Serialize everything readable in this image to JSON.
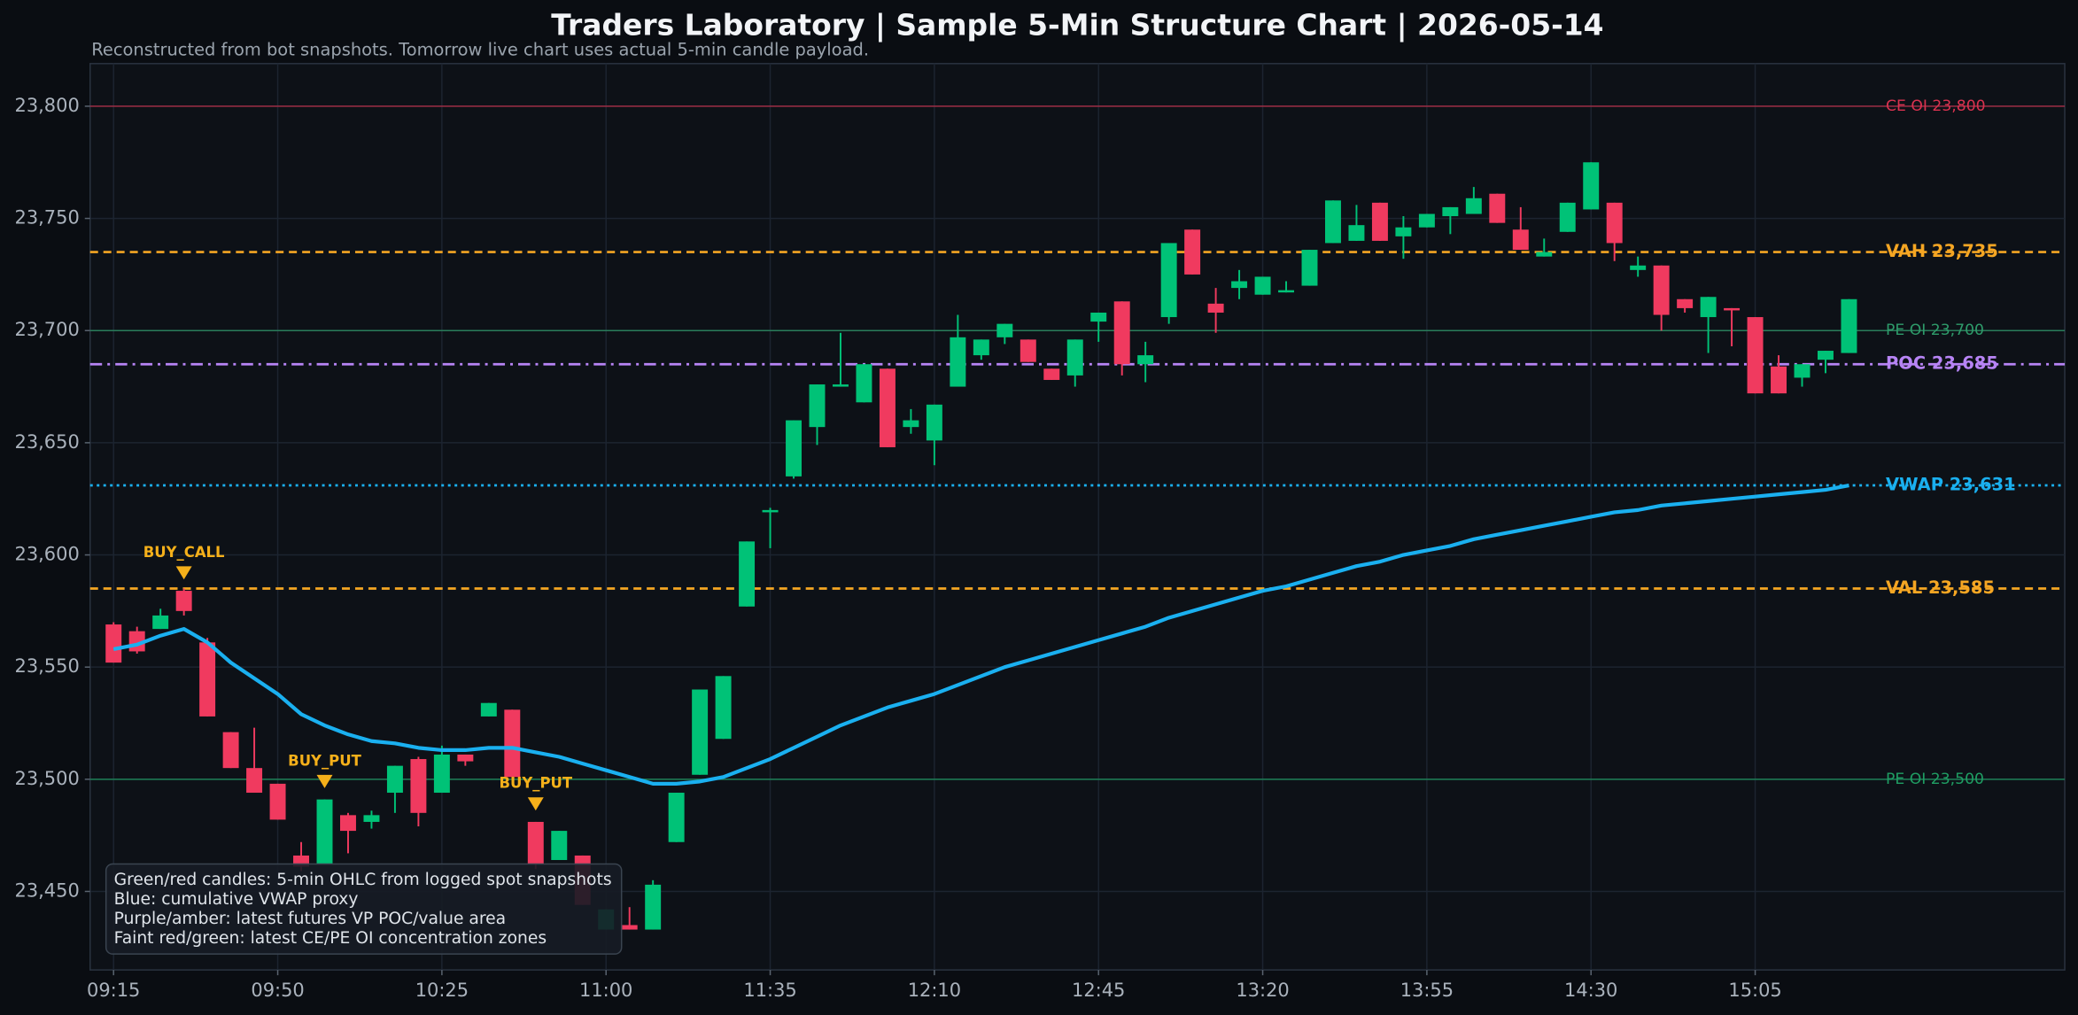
{
  "chart_data": {
    "type": "candlestick",
    "title": "Traders Laboratory | Sample 5-Min Structure Chart | 2026-05-14",
    "subtitle": "Reconstructed from bot snapshots. Tomorrow live chart uses actual 5-min candle payload.",
    "x": [
      0,
      1,
      2,
      3,
      4,
      5,
      6,
      7,
      8,
      9,
      10,
      11,
      12,
      13,
      14,
      15,
      16,
      17,
      18,
      19,
      20,
      21,
      22,
      23,
      24,
      25,
      26,
      27,
      28,
      29,
      30,
      31,
      32,
      33,
      34,
      35,
      36,
      37,
      38,
      39,
      40,
      41,
      42,
      43,
      44,
      45,
      46,
      47,
      48,
      49,
      50,
      51,
      52,
      53,
      54,
      55,
      56,
      57,
      58,
      59,
      60,
      61,
      62,
      63,
      64,
      65,
      66,
      67,
      68,
      69,
      70,
      71,
      72,
      73,
      74
    ],
    "open": [
      23569,
      23566,
      23567,
      23584,
      23561,
      23521,
      23505,
      23498,
      23466,
      23462,
      23484,
      23481,
      23494,
      23509,
      23494,
      23511,
      23528,
      23531,
      23481,
      23464,
      23466,
      23433,
      23435,
      23433,
      23472,
      23502,
      23518,
      23577,
      23619,
      23635,
      23657,
      23675,
      23668,
      23683,
      23657,
      23651,
      23675,
      23689,
      23697,
      23696,
      23683,
      23680,
      23704,
      23713,
      23685,
      23706,
      23745,
      23712,
      23719,
      23716,
      23717,
      23720,
      23739,
      23740,
      23757,
      23742,
      23746,
      23751,
      23752,
      23761,
      23745,
      23733,
      23744,
      23754,
      23757,
      23727,
      23729,
      23714,
      23706,
      23710,
      23706,
      23684,
      23679,
      23687,
      23690
    ],
    "high": [
      23570,
      23568,
      23576,
      23585,
      23563,
      23521,
      23523,
      23498,
      23472,
      23491,
      23485,
      23486,
      23506,
      23510,
      23515,
      23511,
      23534,
      23531,
      23481,
      23477,
      23466,
      23442,
      23443,
      23455,
      23494,
      23540,
      23546,
      23606,
      23621,
      23660,
      23676,
      23699,
      23685,
      23683,
      23665,
      23667,
      23707,
      23696,
      23703,
      23696,
      23683,
      23696,
      23708,
      23713,
      23695,
      23739,
      23745,
      23719,
      23727,
      23724,
      23722,
      23736,
      23758,
      23756,
      23757,
      23751,
      23752,
      23755,
      23764,
      23761,
      23755,
      23741,
      23757,
      23775,
      23757,
      23733,
      23729,
      23714,
      23715,
      23710,
      23706,
      23689,
      23685,
      23691,
      23714
    ],
    "low": [
      23552,
      23556,
      23567,
      23573,
      23528,
      23505,
      23494,
      23482,
      23459,
      23462,
      23467,
      23478,
      23485,
      23479,
      23494,
      23506,
      23528,
      23501,
      23460,
      23464,
      23444,
      23433,
      23433,
      23433,
      23472,
      23502,
      23518,
      23577,
      23603,
      23634,
      23649,
      23675,
      23668,
      23648,
      23654,
      23640,
      23675,
      23687,
      23694,
      23686,
      23678,
      23675,
      23695,
      23680,
      23677,
      23703,
      23725,
      23699,
      23714,
      23716,
      23717,
      23720,
      23739,
      23740,
      23740,
      23732,
      23746,
      23743,
      23752,
      23748,
      23736,
      23733,
      23744,
      23754,
      23731,
      23724,
      23700,
      23708,
      23690,
      23693,
      23672,
      23672,
      23675,
      23681,
      23690
    ],
    "close": [
      23552,
      23557,
      23573,
      23575,
      23528,
      23505,
      23494,
      23482,
      23461,
      23491,
      23477,
      23484,
      23506,
      23485,
      23511,
      23508,
      23534,
      23501,
      23462,
      23477,
      23444,
      23442,
      23433,
      23453,
      23494,
      23540,
      23546,
      23606,
      23620,
      23660,
      23676,
      23676,
      23685,
      23648,
      23660,
      23667,
      23697,
      23696,
      23703,
      23686,
      23678,
      23696,
      23708,
      23685,
      23689,
      23739,
      23725,
      23708,
      23722,
      23724,
      23718,
      23736,
      23758,
      23747,
      23740,
      23746,
      23752,
      23755,
      23759,
      23748,
      23736,
      23735,
      23757,
      23775,
      23739,
      23729,
      23707,
      23710,
      23715,
      23709,
      23672,
      23672,
      23685,
      23691,
      23714
    ],
    "up_color": "#00c277",
    "down_color": "#f03a5f",
    "vwap": {
      "color": "#1ab0f0",
      "values": [
        23558,
        23560,
        23564,
        23567,
        23561,
        23552,
        23545,
        23538,
        23529,
        23524,
        23520,
        23517,
        23516,
        23514,
        23513,
        23513,
        23514,
        23514,
        23512,
        23510,
        23507,
        23504,
        23501,
        23498,
        23498,
        23499,
        23501,
        23505,
        23509,
        23514,
        23519,
        23524,
        23528,
        23532,
        23535,
        23538,
        23542,
        23546,
        23550,
        23553,
        23556,
        23559,
        23562,
        23565,
        23568,
        23572,
        23575,
        23578,
        23581,
        23584,
        23586,
        23589,
        23592,
        23595,
        23597,
        23600,
        23602,
        23604,
        23607,
        23609,
        23611,
        23613,
        23615,
        23617,
        23619,
        23620,
        23622,
        23623,
        23624,
        23625,
        23626,
        23627,
        23628,
        23629,
        23631
      ]
    },
    "levels": [
      {
        "label": "CE OI 23,800",
        "value": 23800,
        "color": "#d8324f",
        "style": "solid",
        "emphasis": false
      },
      {
        "label": "VAH 23,735",
        "value": 23735,
        "color": "#f5a623",
        "style": "dashed",
        "emphasis": true
      },
      {
        "label": "PE OI 23,700",
        "value": 23700,
        "color": "#2e9b6a",
        "style": "solid",
        "emphasis": false
      },
      {
        "label": "POC 23,685",
        "value": 23685,
        "color": "#b784f5",
        "style": "dashdot",
        "emphasis": true
      },
      {
        "label": "VWAP 23,631",
        "value": 23631,
        "color": "#1ab0f0",
        "style": "dotted",
        "emphasis": true
      },
      {
        "label": "VAL 23,585",
        "value": 23585,
        "color": "#f5a623",
        "style": "dashed",
        "emphasis": true
      },
      {
        "label": "PE OI 23,500",
        "value": 23500,
        "color": "#1f9e63",
        "style": "solid",
        "emphasis": false
      }
    ],
    "signals": [
      {
        "label": "BUY_CALL",
        "x": 3,
        "value": 23592
      },
      {
        "label": "BUY_PUT",
        "x": 9,
        "value": 23499
      },
      {
        "label": "BUY_PUT",
        "x": 18,
        "value": 23489
      }
    ],
    "signal_color": "#f5b01a",
    "legend_lines": [
      "Green/red candles: 5-min OHLC from logged spot snapshots",
      "Blue: cumulative VWAP proxy",
      "Purple/amber: latest futures VP POC/value area",
      "Faint red/green: latest CE/PE OI concentration zones"
    ],
    "xlim": [
      -1,
      83.2
    ],
    "xticks": [
      {
        "value": 0,
        "label": "09:15"
      },
      {
        "value": 7,
        "label": "09:50"
      },
      {
        "value": 14,
        "label": "10:25"
      },
      {
        "value": 21,
        "label": "11:00"
      },
      {
        "value": 28,
        "label": "11:35"
      },
      {
        "value": 35,
        "label": "12:10"
      },
      {
        "value": 42,
        "label": "12:45"
      },
      {
        "value": 49,
        "label": "13:20"
      },
      {
        "value": 56,
        "label": "13:55"
      },
      {
        "value": 63,
        "label": "14:30"
      },
      {
        "value": 70,
        "label": "15:05"
      }
    ],
    "ylim": [
      23415,
      23819
    ],
    "yticks": [
      {
        "value": 23450,
        "label": "23,450"
      },
      {
        "value": 23500,
        "label": "23,500"
      },
      {
        "value": 23550,
        "label": "23,550"
      },
      {
        "value": 23600,
        "label": "23,600"
      },
      {
        "value": 23650,
        "label": "23,650"
      },
      {
        "value": 23700,
        "label": "23,700"
      },
      {
        "value": 23750,
        "label": "23,750"
      },
      {
        "value": 23800,
        "label": "23,800"
      }
    ],
    "grid": true
  }
}
